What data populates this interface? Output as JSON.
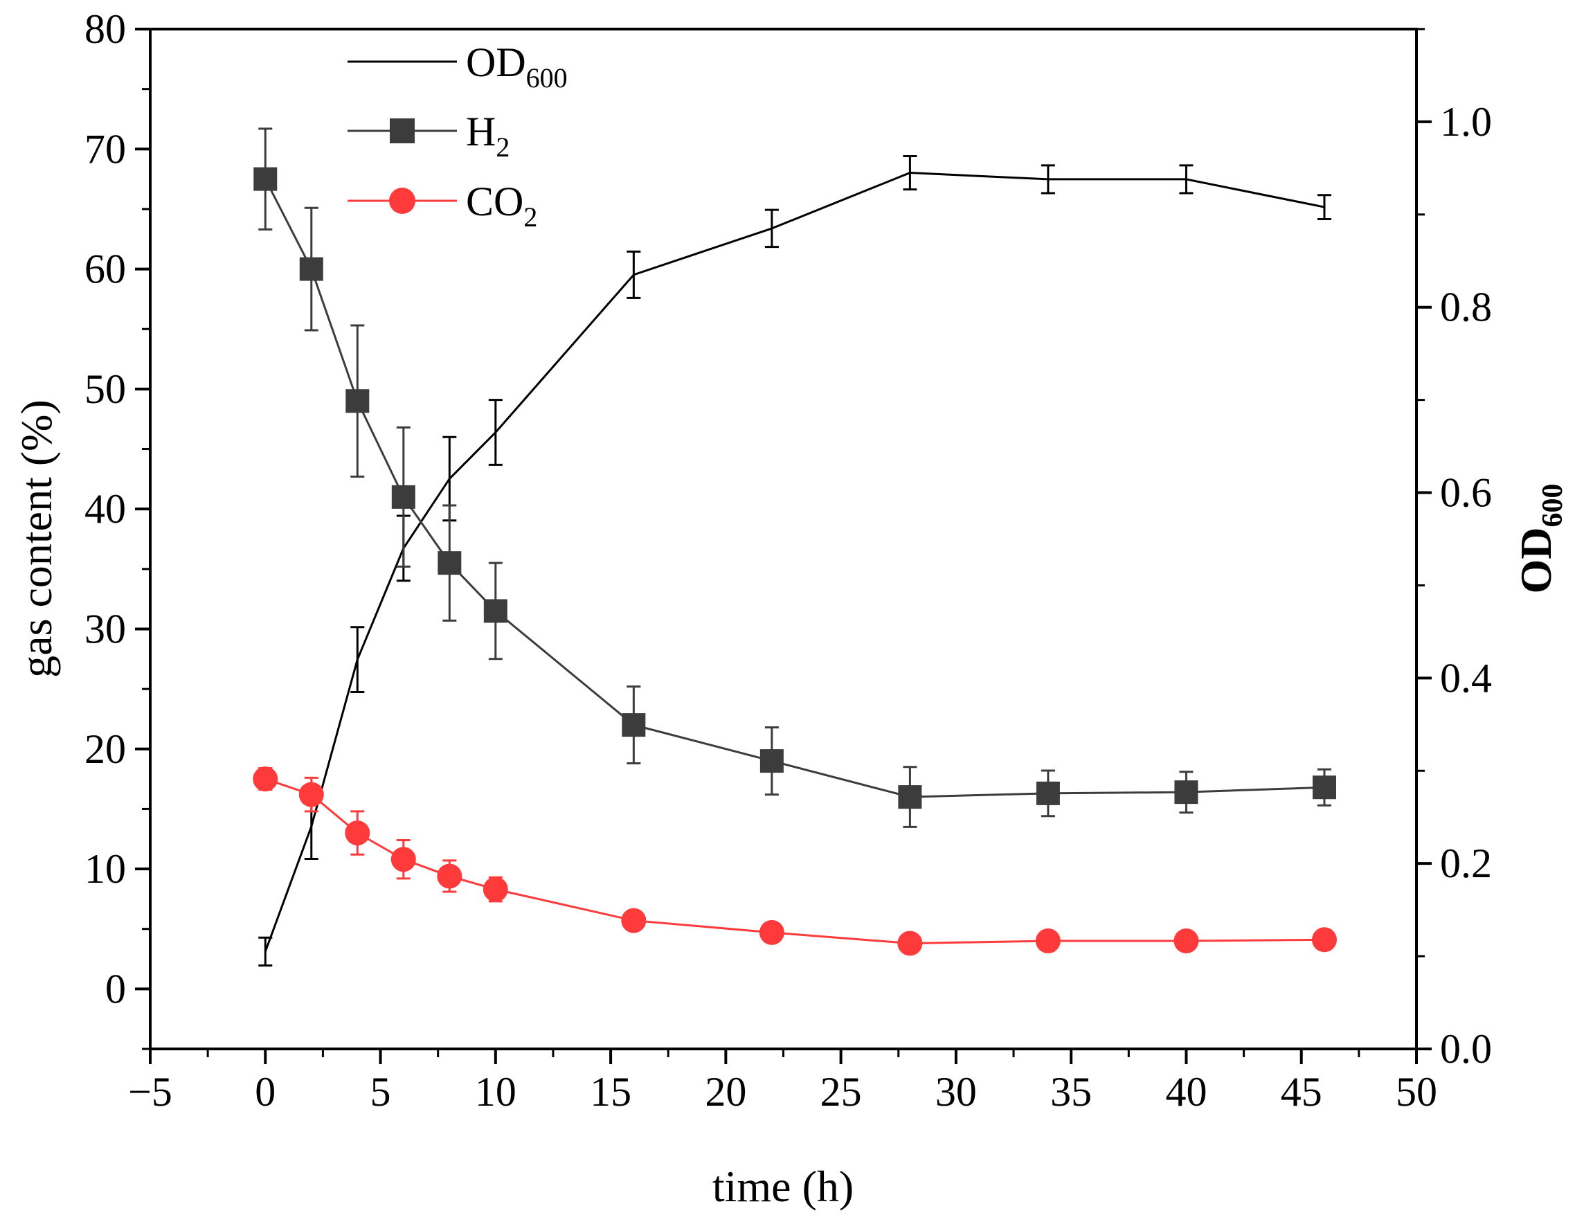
{
  "chart_data": {
    "type": "line",
    "title": "",
    "xlabel": "time (h)",
    "ylabel_left": "gas content (%)",
    "ylabel_right": {
      "base": "OD",
      "sub": "600"
    },
    "xlim": [
      -5,
      50
    ],
    "xticks": [
      "−5",
      "0",
      "5",
      "10",
      "15",
      "20",
      "25",
      "30",
      "35",
      "40",
      "45",
      "50"
    ],
    "ylim_left": [
      -5,
      80
    ],
    "yticks_left": [
      "0",
      "10",
      "20",
      "30",
      "40",
      "50",
      "60",
      "70",
      "80"
    ],
    "ylim_right": [
      0,
      1.1
    ],
    "yticks_right": [
      "0.0",
      "0.2",
      "0.4",
      "0.6",
      "0.8",
      "1.0"
    ],
    "legend": "top-left",
    "series": [
      {
        "name": "OD600",
        "label_base": "OD",
        "label_sub": "600",
        "axis": "right",
        "color": "#000000",
        "marker": "none",
        "x": [
          0,
          2,
          4,
          6,
          8,
          10,
          16,
          22,
          28,
          34,
          40,
          46
        ],
        "y": [
          0.105,
          0.24,
          0.42,
          0.54,
          0.615,
          0.665,
          0.835,
          0.885,
          0.945,
          0.938,
          0.938,
          0.908
        ],
        "err": [
          0.015,
          0.035,
          0.035,
          0.035,
          0.045,
          0.035,
          0.025,
          0.02,
          0.018,
          0.015,
          0.015,
          0.013
        ]
      },
      {
        "name": "H2",
        "label_base": "H",
        "label_sub": "2",
        "axis": "left",
        "color": "#3c3c3c",
        "marker": "square",
        "x": [
          0,
          2,
          4,
          6,
          8,
          10,
          16,
          22,
          28,
          34,
          40,
          46
        ],
        "y": [
          67.5,
          60.0,
          49.0,
          41.0,
          35.5,
          31.5,
          22.0,
          19.0,
          16.0,
          16.3,
          16.4,
          16.8
        ],
        "err": [
          4.2,
          5.1,
          6.3,
          5.8,
          4.8,
          4.0,
          3.2,
          2.8,
          2.5,
          1.9,
          1.7,
          1.5
        ]
      },
      {
        "name": "CO2",
        "label_base": "CO",
        "label_sub": "2",
        "axis": "left",
        "color": "#ff3a3a",
        "marker": "circle",
        "x": [
          0,
          2,
          4,
          6,
          8,
          10,
          16,
          22,
          28,
          34,
          40,
          46
        ],
        "y": [
          17.5,
          16.2,
          13.0,
          10.8,
          9.4,
          8.3,
          5.7,
          4.7,
          3.8,
          4.0,
          4.0,
          4.1
        ],
        "err": [
          0.9,
          1.4,
          1.8,
          1.6,
          1.3,
          1.0,
          0.5,
          0.4,
          0.4,
          0.4,
          0.4,
          0.4
        ]
      }
    ]
  }
}
